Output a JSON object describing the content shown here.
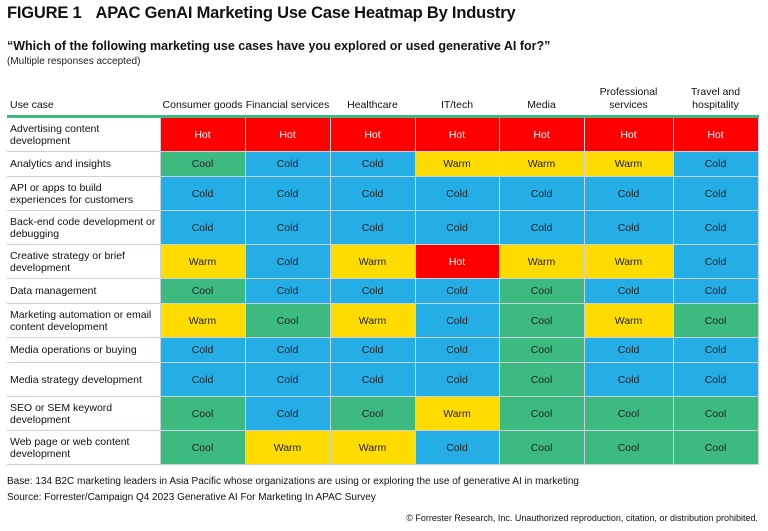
{
  "figure_label": "FIGURE 1",
  "title": "APAC GenAI Marketing Use Case Heatmap By Industry",
  "question": "“Which of the following marketing use cases have you explored or used generative AI for?”",
  "note": "(Multiple responses accepted)",
  "footer": {
    "base": "Base: 134 B2C marketing leaders in Asia Pacific whose organizations are using or exploring the use of generative AI in marketing",
    "source": "Source: Forrester/Campaign Q4 2023 Generative AI For Marketing In APAC Survey",
    "copyright": "© Forrester Research, Inc. Unauthorized reproduction, citation, or distribution prohibited."
  },
  "chart_data": {
    "type": "heatmap",
    "row_header": "Use case",
    "columns": [
      "Consumer goods",
      "Financial services",
      "Healthcare",
      "IT/tech",
      "Media",
      "Professional services",
      "Travel and hospitality"
    ],
    "colors": {
      "Hot": "#ff0000",
      "Warm": "#ffdc00",
      "Cool": "#3dba7f",
      "Cold": "#25aee6"
    },
    "rows": [
      {
        "label": "Advertising content development",
        "values": [
          "Hot",
          "Hot",
          "Hot",
          "Hot",
          "Hot",
          "Hot",
          "Hot"
        ]
      },
      {
        "label": "Analytics and insights",
        "values": [
          "Cool",
          "Cold",
          "Cold",
          "Warm",
          "Warm",
          "Warm",
          "Cold"
        ]
      },
      {
        "label": "API or apps to build experiences for customers",
        "values": [
          "Cold",
          "Cold",
          "Cold",
          "Cold",
          "Cold",
          "Cold",
          "Cold"
        ]
      },
      {
        "label": "Back-end code development or debugging",
        "values": [
          "Cold",
          "Cold",
          "Cold",
          "Cold",
          "Cold",
          "Cold",
          "Cold"
        ]
      },
      {
        "label": "Creative strategy or brief development",
        "values": [
          "Warm",
          "Cold",
          "Warm",
          "Hot",
          "Warm",
          "Warm",
          "Cold"
        ]
      },
      {
        "label": "Data management",
        "values": [
          "Cool",
          "Cold",
          "Cold",
          "Cold",
          "Cool",
          "Cold",
          "Cold"
        ]
      },
      {
        "label": "Marketing automation or email content development",
        "values": [
          "Warm",
          "Cool",
          "Warm",
          "Cold",
          "Cool",
          "Warm",
          "Cool"
        ]
      },
      {
        "label": "Media operations or buying",
        "values": [
          "Cold",
          "Cold",
          "Cold",
          "Cold",
          "Cool",
          "Cold",
          "Cold"
        ]
      },
      {
        "label": "Media strategy development",
        "values": [
          "Cold",
          "Cold",
          "Cold",
          "Cold",
          "Cool",
          "Cold",
          "Cold"
        ]
      },
      {
        "label": "SEO or SEM keyword development",
        "values": [
          "Cool",
          "Cold",
          "Cool",
          "Warm",
          "Cool",
          "Cool",
          "Cool"
        ]
      },
      {
        "label": "Web page or web content development",
        "values": [
          "Cool",
          "Warm",
          "Warm",
          "Cold",
          "Cool",
          "Cool",
          "Cool"
        ]
      }
    ]
  }
}
